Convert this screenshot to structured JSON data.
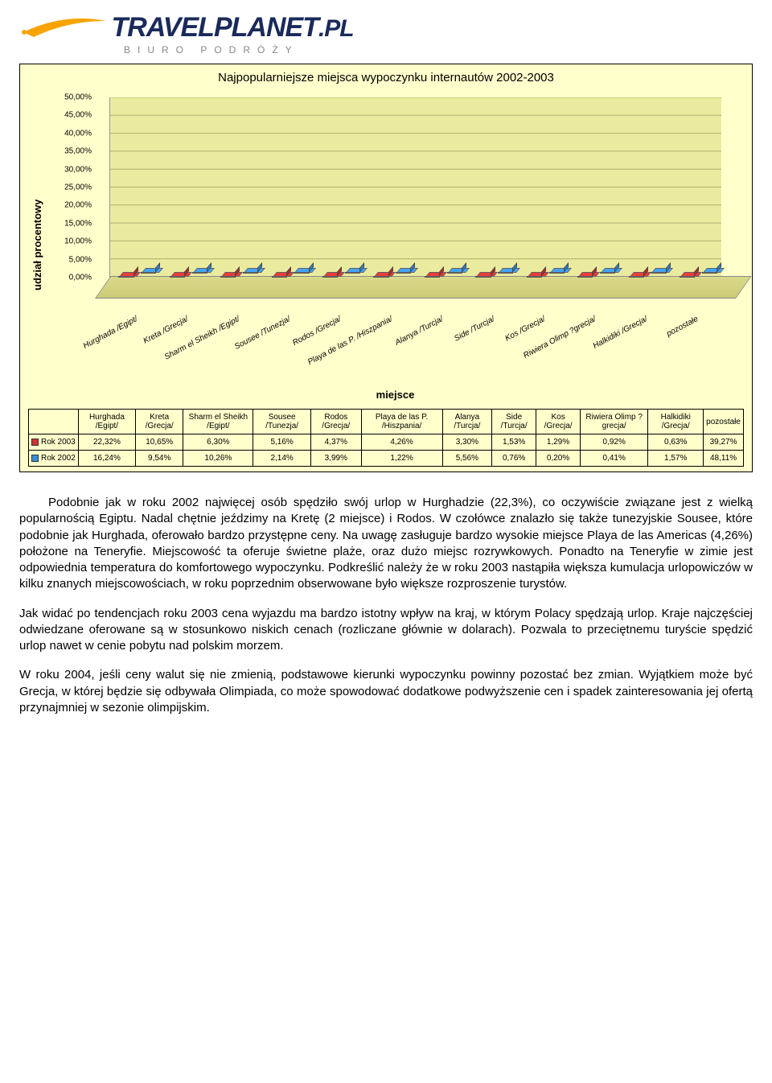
{
  "logo": {
    "brand_main": "TRAVEL",
    "brand_accent": "PLANET",
    "brand_suffix": ".PL",
    "tagline": "BIURO PODRÓŻY",
    "swoosh_color": "#f7a400",
    "text_color": "#1a2a5a"
  },
  "chart": {
    "type": "bar-3d-grouped",
    "title": "Najpopularniejsze miejsca wypoczynku internautów 2002-2003",
    "ylabel": "udział procentowy",
    "xlabel": "miejsce",
    "background_color": "#ffffcc",
    "plot_back_color": "#ebeba0",
    "floor_color": "#cccc77",
    "grid_color": "#b0b070",
    "border_color": "#000000",
    "ylim": [
      0,
      50
    ],
    "ytick_step": 5,
    "ytick_format_suffix": ",00%",
    "series": [
      {
        "key": "rok2003",
        "label": "Rok 2003",
        "color": "#cc3333"
      },
      {
        "key": "rok2002",
        "label": "Rok 2002",
        "color": "#3a8fd6"
      }
    ],
    "categories": [
      "Hurghada /Egipt/",
      "Kreta /Grecja/",
      "Sharm el Sheikh /Egipt/",
      "Sousee /Tunezja/",
      "Rodos /Grecja/",
      "Playa de las P. /Hiszpania/",
      "Alanya /Turcja/",
      "Side /Turcja/",
      "Kos /Grecja/",
      "Riwiera Olimp ?grecja/",
      "Halkidiki /Grecja/",
      "pozostałe"
    ],
    "values": {
      "rok2003": [
        22.32,
        10.65,
        6.3,
        5.16,
        4.37,
        4.26,
        3.3,
        1.53,
        1.29,
        0.92,
        0.63,
        39.27
      ],
      "rok2002": [
        16.24,
        9.54,
        10.26,
        2.14,
        3.99,
        1.22,
        5.56,
        0.76,
        0.2,
        0.41,
        1.57,
        48.11
      ]
    },
    "values_display": {
      "rok2003": [
        "22,32%",
        "10,65%",
        "6,30%",
        "5,16%",
        "4,37%",
        "4,26%",
        "3,30%",
        "1,53%",
        "1,29%",
        "0,92%",
        "0,63%",
        "39,27%"
      ],
      "rok2002": [
        "16,24%",
        "9,54%",
        "10,26%",
        "2,14%",
        "3,99%",
        "1,22%",
        "5,56%",
        "0,76%",
        "0,20%",
        "0,41%",
        "1,57%",
        "48,11%"
      ]
    },
    "title_fontsize": 15,
    "label_fontsize": 13,
    "tick_fontsize": 10
  },
  "paragraphs": [
    "Podobnie jak w roku 2002 najwięcej osób spędziło swój urlop w Hurghadzie (22,3%), co oczywiście związane jest z wielką popularnością Egiptu. Nadal chętnie jeździmy na Kretę (2 miejsce) i Rodos. W czołówce znalazło się także tunezyjskie Sousee, które podobnie jak Hurghada, oferowało bardzo przystępne ceny. Na uwagę zasługuje bardzo wysokie miejsce Playa de las Americas (4,26%) położone na Teneryfie. Miejscowość ta oferuje świetne plaże, oraz dużo miejsc rozrywkowych. Ponadto na Teneryfie w zimie jest odpowiednia temperatura do komfortowego wypoczynku. Podkreślić należy że w roku 2003 nastąpiła większa kumulacja urlopowiczów w kilku znanych miejscowościach, w roku poprzednim obserwowane było większe rozproszenie turystów.",
    "Jak widać po tendencjach roku 2003 cena wyjazdu ma bardzo istotny wpływ na kraj, w którym Polacy spędzają urlop. Kraje najczęściej odwiedzane oferowane są w stosunkowo niskich cenach (rozliczane głównie w dolarach). Pozwala to przeciętnemu turyście spędzić urlop nawet w cenie pobytu nad polskim morzem.",
    "W roku 2004, jeśli ceny walut się nie zmienią, podstawowe kierunki wypoczynku powinny pozostać bez zmian. Wyjątkiem może być Grecja, w której będzie się odbywała Olimpiada, co może spowodować dodatkowe podwyższenie cen i spadek zainteresowania jej ofertą przynajmniej w sezonie olimpijskim."
  ]
}
